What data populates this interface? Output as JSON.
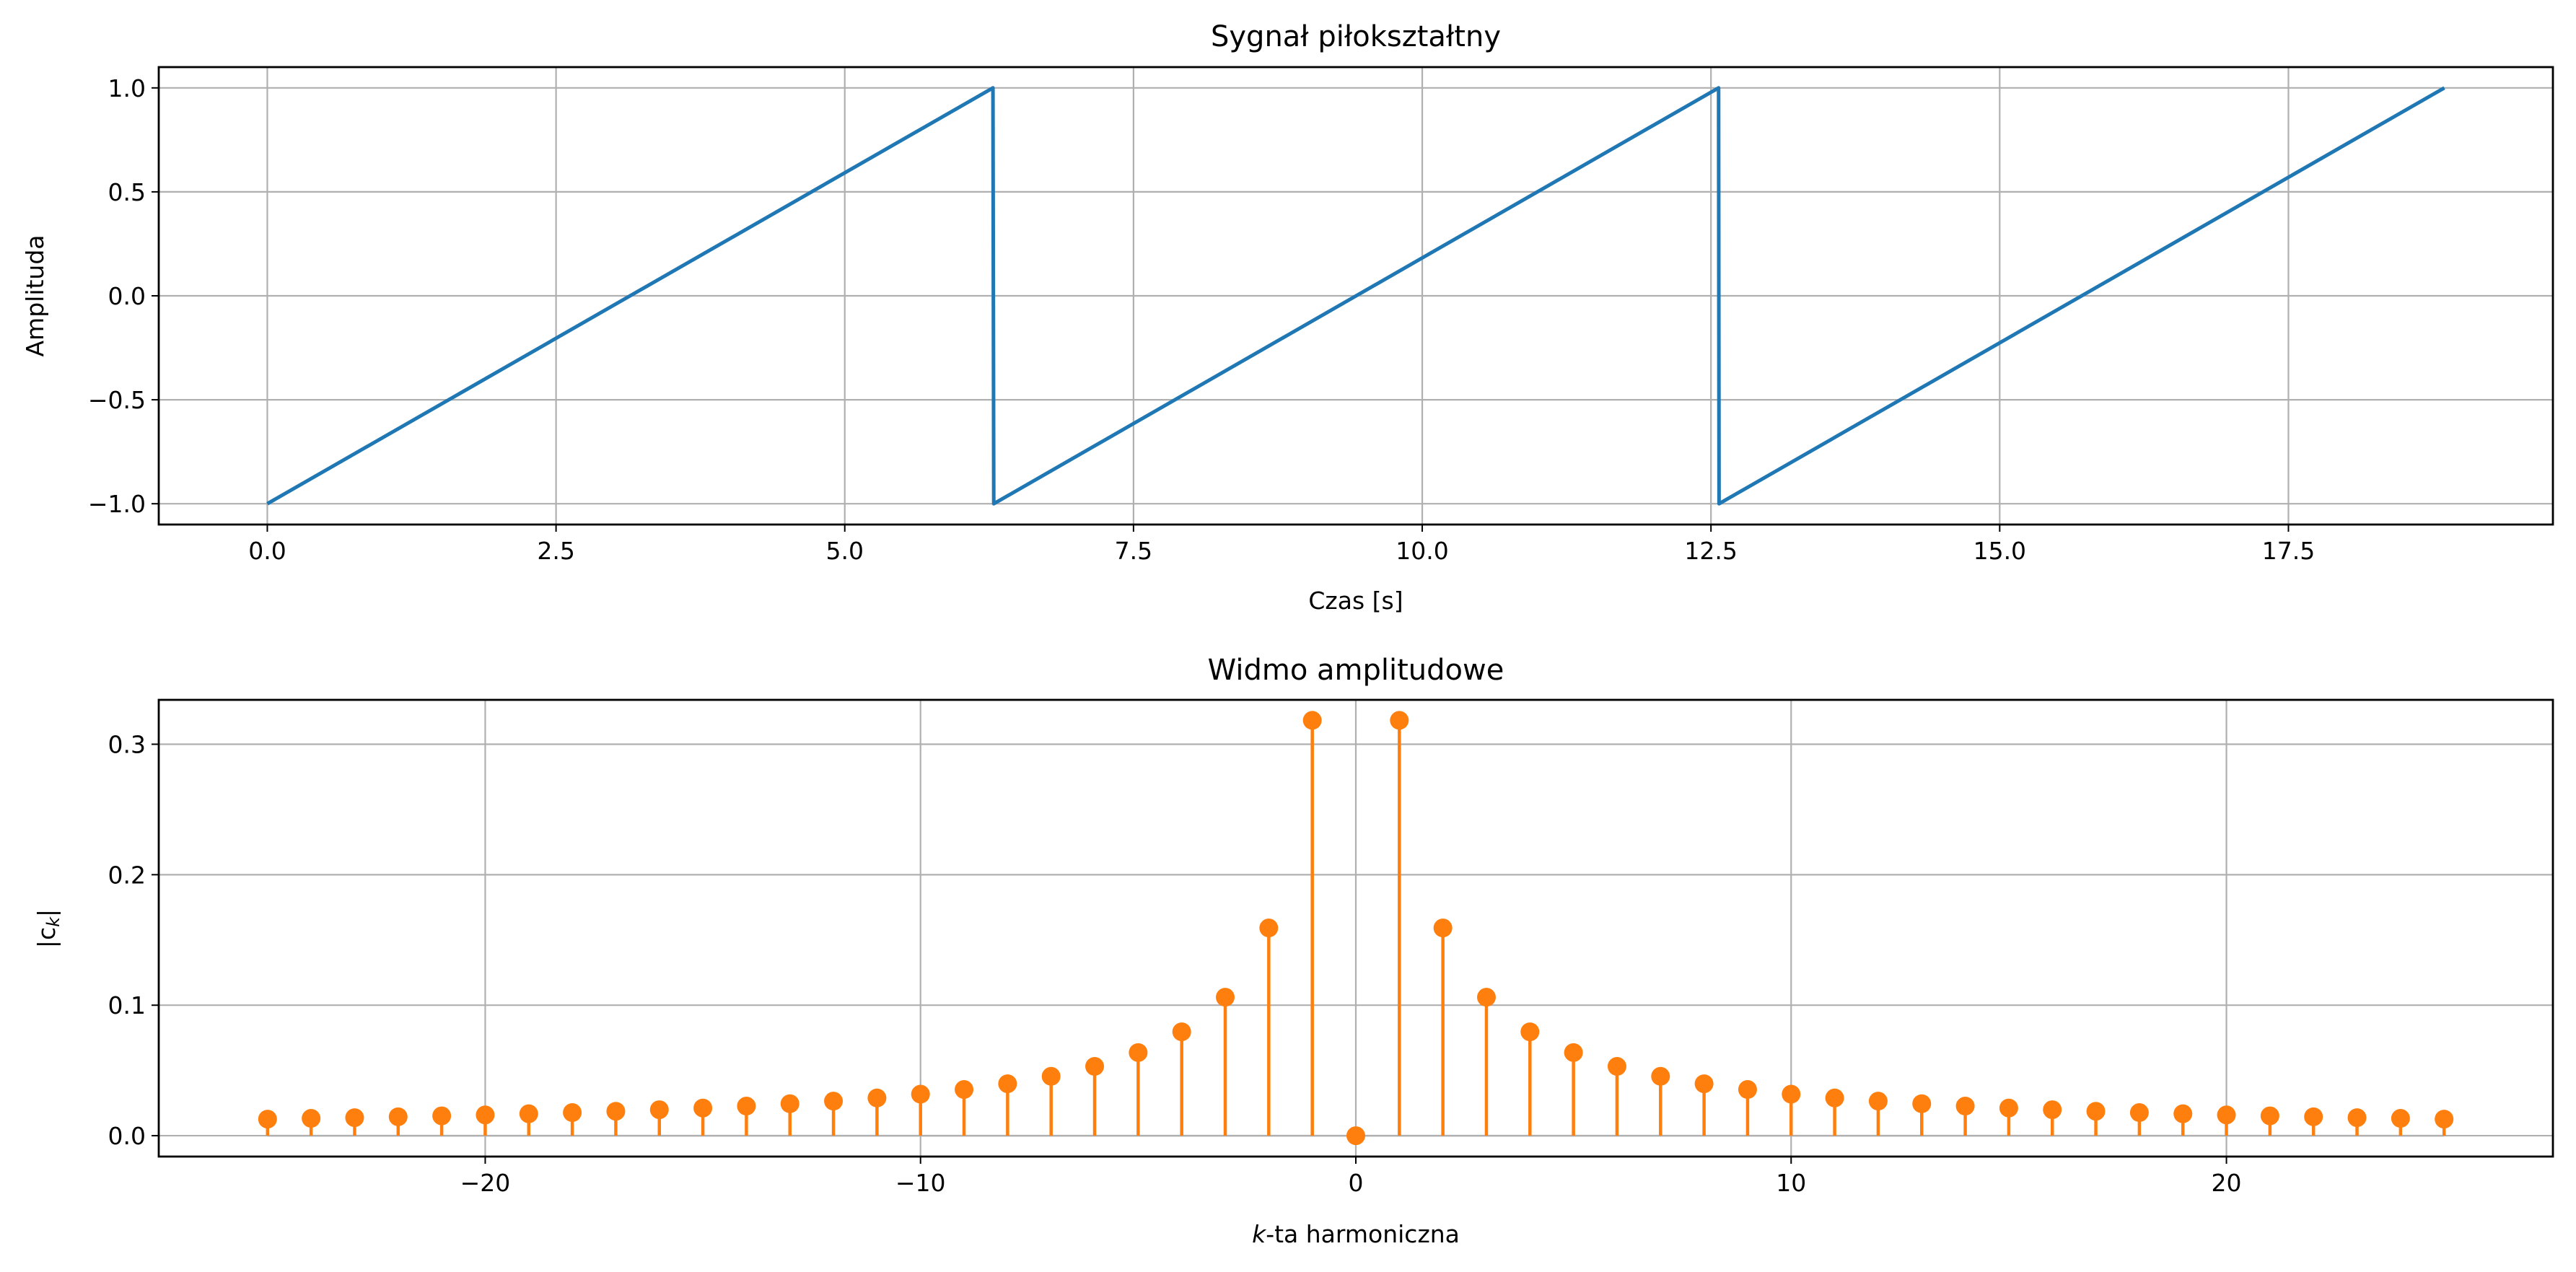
{
  "chart_data": [
    {
      "type": "line",
      "title": "Sygnał piłokształtny",
      "xlabel": "Czas [s]",
      "ylabel": "Amplituda",
      "xlim": [
        -0.94,
        19.79
      ],
      "ylim": [
        -1.1,
        1.1
      ],
      "xticks": [
        0.0,
        2.5,
        5.0,
        7.5,
        10.0,
        12.5,
        15.0,
        17.5
      ],
      "xtick_labels": [
        "0.0",
        "2.5",
        "5.0",
        "7.5",
        "10.0",
        "12.5",
        "15.0",
        "17.5"
      ],
      "yticks": [
        -1.0,
        -0.5,
        0.0,
        0.5,
        1.0
      ],
      "ytick_labels": [
        "−1.0",
        "−0.5",
        "0.0",
        "0.5",
        "1.0"
      ],
      "grid": true,
      "color": "#1f77b4",
      "series": [
        {
          "name": "sawtooth",
          "x": [
            0,
            6.283,
            6.29,
            12.566,
            12.57,
            18.85
          ],
          "y": [
            -1,
            1,
            -1,
            1,
            -1,
            1
          ]
        }
      ]
    },
    {
      "type": "stem",
      "title": "Widmo amplitudowe",
      "xlabel_italic": "k",
      "xlabel": "-ta harmoniczna",
      "ylabel": "|c_k|",
      "ylabel_base": "|c",
      "ylabel_sub": "k",
      "ylabel_end": "|",
      "xlim": [
        -27.5,
        27.5
      ],
      "ylim": [
        -0.016,
        0.334
      ],
      "xticks": [
        -20,
        -10,
        0,
        10,
        20
      ],
      "xtick_labels": [
        "−20",
        "−10",
        "0",
        "10",
        "20"
      ],
      "yticks": [
        0.0,
        0.1,
        0.2,
        0.3
      ],
      "ytick_labels": [
        "0.0",
        "0.1",
        "0.2",
        "0.3"
      ],
      "grid": true,
      "color": "#ff7f0e",
      "k": [
        -25,
        -24,
        -23,
        -22,
        -21,
        -20,
        -19,
        -18,
        -17,
        -16,
        -15,
        -14,
        -13,
        -12,
        -11,
        -10,
        -9,
        -8,
        -7,
        -6,
        -5,
        -4,
        -3,
        -2,
        -1,
        0,
        1,
        2,
        3,
        4,
        5,
        6,
        7,
        8,
        9,
        10,
        11,
        12,
        13,
        14,
        15,
        16,
        17,
        18,
        19,
        20,
        21,
        22,
        23,
        24,
        25
      ],
      "values": [
        0.0127,
        0.0133,
        0.0138,
        0.0145,
        0.0152,
        0.0159,
        0.0168,
        0.0177,
        0.0187,
        0.0199,
        0.0212,
        0.0227,
        0.0245,
        0.0265,
        0.0289,
        0.0318,
        0.0354,
        0.0398,
        0.0455,
        0.0531,
        0.0637,
        0.0796,
        0.1061,
        0.1592,
        0.3183,
        0.0,
        0.3183,
        0.1592,
        0.1061,
        0.0796,
        0.0637,
        0.0531,
        0.0455,
        0.0398,
        0.0354,
        0.0318,
        0.0289,
        0.0265,
        0.0245,
        0.0227,
        0.0212,
        0.0199,
        0.0187,
        0.0177,
        0.0168,
        0.0159,
        0.0152,
        0.0145,
        0.0138,
        0.0133,
        0.0127
      ]
    }
  ]
}
